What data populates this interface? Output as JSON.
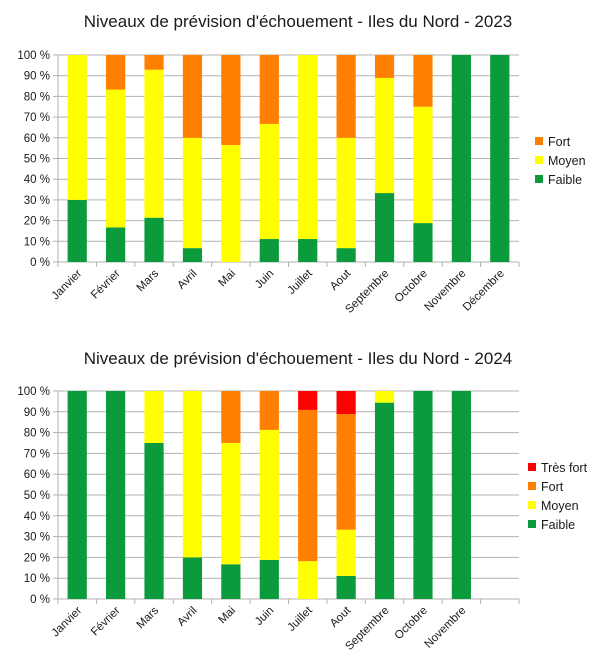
{
  "colors": {
    "Faible": "#0b9a3c",
    "Moyen": "#ffff00",
    "Fort": "#ff8000",
    "Très fort": "#ff0000"
  },
  "chart_data": [
    {
      "type": "bar",
      "stacked": true,
      "title": "Niveaux de prévision d'échouement - Iles du Nord - 2023",
      "ylim": [
        0,
        100
      ],
      "yticks": [
        "0 %",
        "10 %",
        "20 %",
        "30 %",
        "40 %",
        "50 %",
        "60 %",
        "70 %",
        "80 %",
        "90 %",
        "100 %"
      ],
      "grid": true,
      "legend_position": "right",
      "categories": [
        "Janvier",
        "Février",
        "Mars",
        "Avril",
        "Mai",
        "Juin",
        "Juillet",
        "Aout",
        "Septembre",
        "Octobre",
        "Novembre",
        "Décembre"
      ],
      "series": [
        {
          "name": "Faible",
          "values": [
            30,
            16.7,
            21.4,
            6.7,
            0,
            11.1,
            11.1,
            6.7,
            33.3,
            18.8,
            100,
            100
          ]
        },
        {
          "name": "Moyen",
          "values": [
            70,
            66.6,
            71.5,
            53.3,
            56.5,
            55.6,
            88.9,
            53.3,
            55.6,
            56.2,
            0,
            0
          ]
        },
        {
          "name": "Fort",
          "values": [
            0,
            16.7,
            7.1,
            40,
            43.5,
            33.3,
            0,
            40,
            11.1,
            25,
            0,
            0
          ]
        }
      ]
    },
    {
      "type": "bar",
      "stacked": true,
      "title": "Niveaux de prévision d'échouement - Iles du Nord - 2024",
      "ylim": [
        0,
        100
      ],
      "yticks": [
        "0 %",
        "10 %",
        "20 %",
        "30 %",
        "40 %",
        "50 %",
        "60 %",
        "70 %",
        "80 %",
        "90 %",
        "100 %"
      ],
      "grid": true,
      "legend_position": "right",
      "categories": [
        "Janvier",
        "Février",
        "Mars",
        "Avril",
        "Mai",
        "Juin",
        "Juillet",
        "Aout",
        "Septembre",
        "Octobre",
        "Novembre"
      ],
      "series": [
        {
          "name": "Faible",
          "values": [
            100,
            100,
            75,
            20,
            16.7,
            18.8,
            0,
            11.1,
            94.4,
            100,
            100
          ]
        },
        {
          "name": "Moyen",
          "values": [
            0,
            0,
            25,
            80,
            58.3,
            62.5,
            18.2,
            22.2,
            5.6,
            0,
            0
          ]
        },
        {
          "name": "Fort",
          "values": [
            0,
            0,
            0,
            0,
            25,
            18.7,
            72.7,
            55.6,
            0,
            0,
            0
          ]
        },
        {
          "name": "Très fort",
          "values": [
            0,
            0,
            0,
            0,
            0,
            0,
            9.1,
            11.1,
            0,
            0,
            0
          ]
        }
      ]
    }
  ]
}
